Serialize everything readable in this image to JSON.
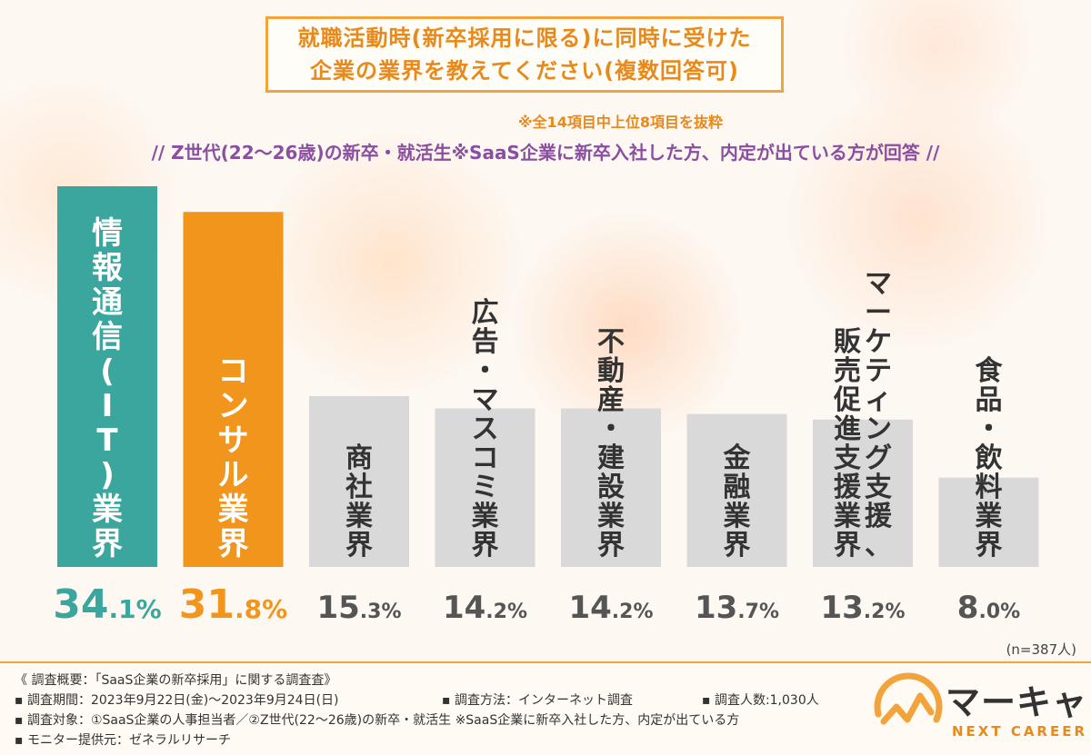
{
  "title": {
    "line1": "就職活動時(新卒採用に限る)に同時に受けた",
    "line2": "企業の業界を教えてください(複数回答可)"
  },
  "note": "※全14項目中上位8項目を抜粋",
  "subtitle": "// Z世代(22～26歳)の新卒・就活生※SaaS企業に新卒入社した方、内定が出ている方が回答 //",
  "chart_data": {
    "type": "bar",
    "categories": [
      "情報通信(IT)業界",
      "コンサル業界",
      "商社業界",
      "広告・マスコミ業界",
      "不動産・建設業界",
      "金融業界",
      "マーケティング支援、販売促進支援業界",
      "食品・飲料業界"
    ],
    "values": [
      34.1,
      31.8,
      15.3,
      14.2,
      14.2,
      13.7,
      13.2,
      8.0
    ],
    "value_labels": [
      "34.1%",
      "31.8%",
      "15.3%",
      "14.2%",
      "14.2%",
      "13.7%",
      "13.2%",
      "8.0%"
    ],
    "colors": [
      "#3aa69d",
      "#f2951c",
      "#d9d9d9",
      "#d9d9d9",
      "#d9d9d9",
      "#d9d9d9",
      "#d9d9d9",
      "#d9d9d9"
    ],
    "label_colors": [
      "#3aa69d",
      "#f2951c",
      "#555555",
      "#555555",
      "#555555",
      "#555555",
      "#555555",
      "#555555"
    ],
    "ylim": [
      0,
      35
    ],
    "n_label": "(n=387人)"
  },
  "footer": {
    "overview": "《 調査概要：「SaaS企業の新卒採用」に関する調査査》",
    "period": "▪ 調査期間：2023年9月22日(金)～2023年9月24日(日)",
    "method": "▪ 調査方法：インターネット調査",
    "count": "▪ 調査人数:1,030人",
    "target": "▪ 調査対象：①SaaS企業の人事担当者／②Z世代(22～26歳)の新卒・就活生 ※SaaS企業に新卒入社した方、内定が出ている方",
    "provider": "▪ モニター提供元：ゼネラルリサーチ"
  },
  "logo": {
    "name": "マーキャリ",
    "sub": "NEXT CAREER",
    "icon": "chart-line-logo-icon"
  }
}
